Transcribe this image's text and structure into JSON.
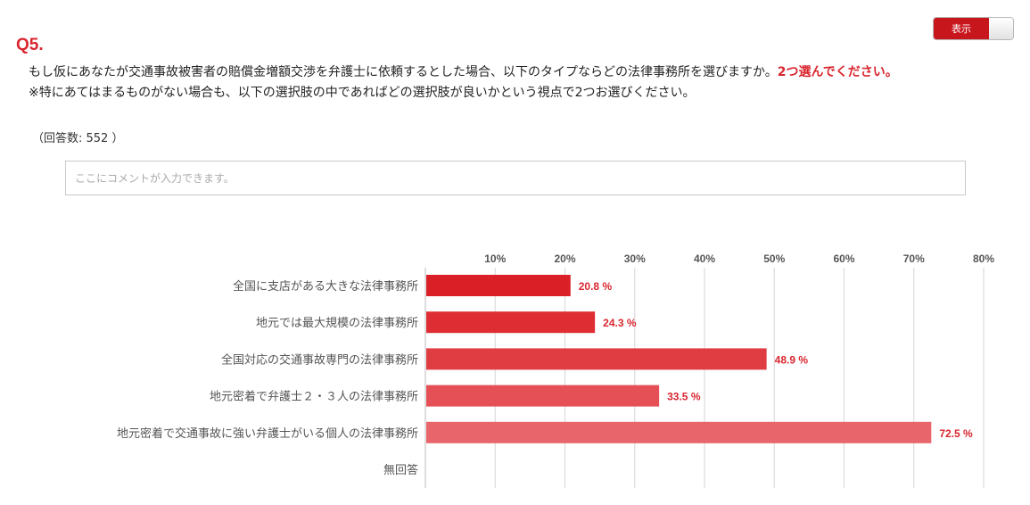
{
  "header": {
    "toggle_label": "表示"
  },
  "question": {
    "number": "Q5.",
    "text": "もし仮にあなたが交通事故被害者の賠償金増額交渉を弁護士に依頼するとした場合、以下のタイプならどの法律事務所を選びますか。",
    "emphasis": "2つ選んでください。",
    "note": "※特にあてはまるものがない場合も、以下の選択肢の中であればどの選択肢が良いかという視点で2つお選びください。",
    "response_count": "（回答数: 552 ）"
  },
  "comment": {
    "placeholder": "ここにコメントが入力できます。"
  },
  "chart_data": {
    "type": "bar",
    "orientation": "horizontal",
    "categories": [
      "全国に支店がある大きな法律事務所",
      "地元では最大規模の法律事務所",
      "全国対応の交通事故専門の法律事務所",
      "地元密着で弁護士２・３人の法律事務所",
      "地元密着で交通事故に強い弁護士がいる個人の法律事務所",
      "無回答"
    ],
    "values": [
      20.8,
      24.3,
      48.9,
      33.5,
      72.5,
      0
    ],
    "value_labels": [
      "20.8 %",
      "24.3 %",
      "48.9 %",
      "33.5 %",
      "72.5 %",
      ""
    ],
    "bar_colors": [
      "#db1f27",
      "#de2d33",
      "#e03d43",
      "#e45056",
      "#e8666b",
      "#e8666b"
    ],
    "label_color": "#d9262f",
    "xlim": [
      0,
      80
    ],
    "xticks": [
      10,
      20,
      30,
      40,
      50,
      60,
      70,
      80
    ],
    "xtick_labels": [
      "10%",
      "20%",
      "30%",
      "40%",
      "50%",
      "60%",
      "70%",
      "80%"
    ],
    "grid": true,
    "title": "",
    "xlabel": "",
    "ylabel": ""
  }
}
